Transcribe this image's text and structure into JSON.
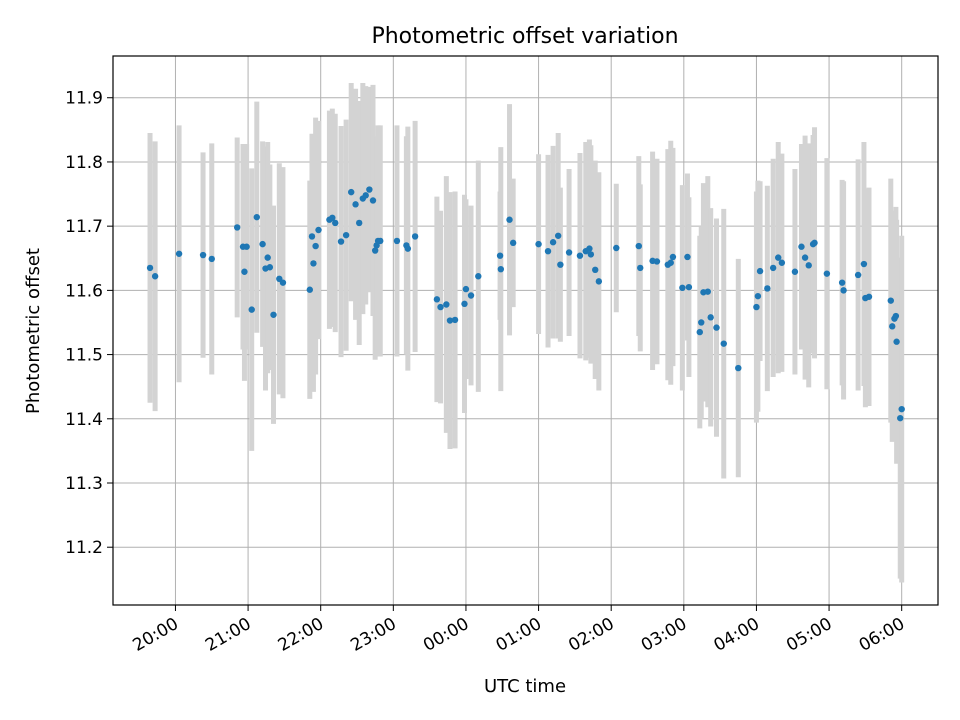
{
  "chart_data": {
    "type": "scatter",
    "title": "Photometric offset variation",
    "xlabel": "UTC time",
    "ylabel": "Photometric offset",
    "x_tick_labels": [
      "20:00",
      "21:00",
      "22:00",
      "23:00",
      "00:00",
      "01:00",
      "02:00",
      "03:00",
      "04:00",
      "05:00",
      "06:00"
    ],
    "x_tick_hours": [
      20,
      21,
      22,
      23,
      24,
      25,
      26,
      27,
      28,
      29,
      30
    ],
    "y_ticks": [
      11.2,
      11.3,
      11.4,
      11.5,
      11.6,
      11.7,
      11.8,
      11.9
    ],
    "y_tick_labels": [
      "11.2",
      "11.3",
      "11.4",
      "11.5",
      "11.6",
      "11.7",
      "11.8",
      "11.9"
    ],
    "xlim_hours": [
      19.14,
      30.5
    ],
    "ylim": [
      11.11,
      11.965
    ],
    "grid": true,
    "colors": {
      "marker": "#1f77b4",
      "errorbar": "#d3d3d3",
      "grid": "#b0b0b0",
      "axes": "#000000"
    },
    "series": [
      {
        "x_hours": [
          19.65,
          19.72,
          20.05,
          20.38,
          20.5,
          20.85,
          20.93,
          20.95,
          20.98,
          21.05,
          21.12,
          21.2,
          21.24,
          21.27,
          21.3,
          21.35,
          21.43,
          21.48,
          21.85,
          21.88,
          21.9,
          21.93,
          21.97,
          22.12,
          22.16,
          22.2,
          22.28,
          22.35,
          22.42,
          22.48,
          22.53,
          22.58,
          22.62,
          22.67,
          22.72,
          22.75,
          22.77,
          22.79,
          22.82,
          23.05,
          23.18,
          23.2,
          23.3,
          23.6,
          23.65,
          23.73,
          23.78,
          23.85,
          23.98,
          24.0,
          24.07,
          24.17,
          24.47,
          24.48,
          24.6,
          24.65,
          25.0,
          25.13,
          25.2,
          25.27,
          25.3,
          25.42,
          25.57,
          25.65,
          25.7,
          25.72,
          25.78,
          25.83,
          26.07,
          26.38,
          26.4,
          26.57,
          26.63,
          26.78,
          26.82,
          26.85,
          26.98,
          27.05,
          27.07,
          27.22,
          27.24,
          27.27,
          27.33,
          27.37,
          27.45,
          27.55,
          27.75,
          28.0,
          28.02,
          28.05,
          28.15,
          28.23,
          28.3,
          28.35,
          28.53,
          28.62,
          28.67,
          28.72,
          28.78,
          28.8,
          28.97,
          29.18,
          29.2,
          29.4,
          29.48,
          29.5,
          29.55,
          29.85,
          29.87,
          29.9,
          29.92,
          29.93,
          29.98,
          30.0
        ],
        "y": [
          11.635,
          11.622,
          11.657,
          11.655,
          11.649,
          11.698,
          11.668,
          11.629,
          11.668,
          11.57,
          11.714,
          11.672,
          11.634,
          11.651,
          11.636,
          11.562,
          11.618,
          11.612,
          11.601,
          11.684,
          11.642,
          11.669,
          11.694,
          11.71,
          11.713,
          11.705,
          11.676,
          11.686,
          11.753,
          11.734,
          11.705,
          11.743,
          11.748,
          11.757,
          11.74,
          11.662,
          11.67,
          11.677,
          11.677,
          11.677,
          11.67,
          11.665,
          11.684,
          11.586,
          11.574,
          11.578,
          11.553,
          11.554,
          11.579,
          11.602,
          11.592,
          11.622,
          11.654,
          11.633,
          11.71,
          11.674,
          11.672,
          11.661,
          11.675,
          11.685,
          11.64,
          11.659,
          11.654,
          11.661,
          11.665,
          11.656,
          11.632,
          11.614,
          11.666,
          11.669,
          11.635,
          11.646,
          11.645,
          11.64,
          11.643,
          11.652,
          11.604,
          11.652,
          11.605,
          11.535,
          11.55,
          11.597,
          11.598,
          11.558,
          11.542,
          11.517,
          11.479,
          11.574,
          11.591,
          11.63,
          11.603,
          11.635,
          11.651,
          11.643,
          11.629,
          11.668,
          11.651,
          11.639,
          11.672,
          11.674,
          11.626,
          11.612,
          11.6,
          11.624,
          11.641,
          11.588,
          11.59,
          11.584,
          11.544,
          11.556,
          11.56,
          11.52,
          11.401,
          11.415
        ],
        "err": [
          0.21,
          0.21,
          0.2,
          0.16,
          0.18,
          0.14,
          0.16,
          0.17,
          0.16,
          0.22,
          0.18,
          0.16,
          0.19,
          0.18,
          0.16,
          0.17,
          0.18,
          0.18,
          0.17,
          0.16,
          0.2,
          0.2,
          0.17,
          0.17,
          0.17,
          0.17,
          0.18,
          0.18,
          0.17,
          0.18,
          0.19,
          0.18,
          0.17,
          0.16,
          0.18,
          0.17,
          0.17,
          0.18,
          0.18,
          0.18,
          0.17,
          0.19,
          0.18,
          0.16,
          0.15,
          0.2,
          0.2,
          0.2,
          0.17,
          0.14,
          0.14,
          0.18,
          0.1,
          0.19,
          0.18,
          0.1,
          0.14,
          0.15,
          0.15,
          0.16,
          0.12,
          0.13,
          0.16,
          0.17,
          0.17,
          0.17,
          0.17,
          0.17,
          0.1,
          0.14,
          0.13,
          0.17,
          0.16,
          0.18,
          0.19,
          0.17,
          0.16,
          0.13,
          0.14,
          0.15,
          0.15,
          0.17,
          0.18,
          0.17,
          0.17,
          0.21,
          0.17,
          0.18,
          0.18,
          0.14,
          0.16,
          0.17,
          0.18,
          0.17,
          0.16,
          0.16,
          0.19,
          0.19,
          0.17,
          0.18,
          0.18,
          0.16,
          0.17,
          0.18,
          0.19,
          0.17,
          0.17,
          0.19,
          0.18,
          0.15,
          0.17,
          0.19,
          0.25,
          0.27
        ]
      }
    ]
  }
}
